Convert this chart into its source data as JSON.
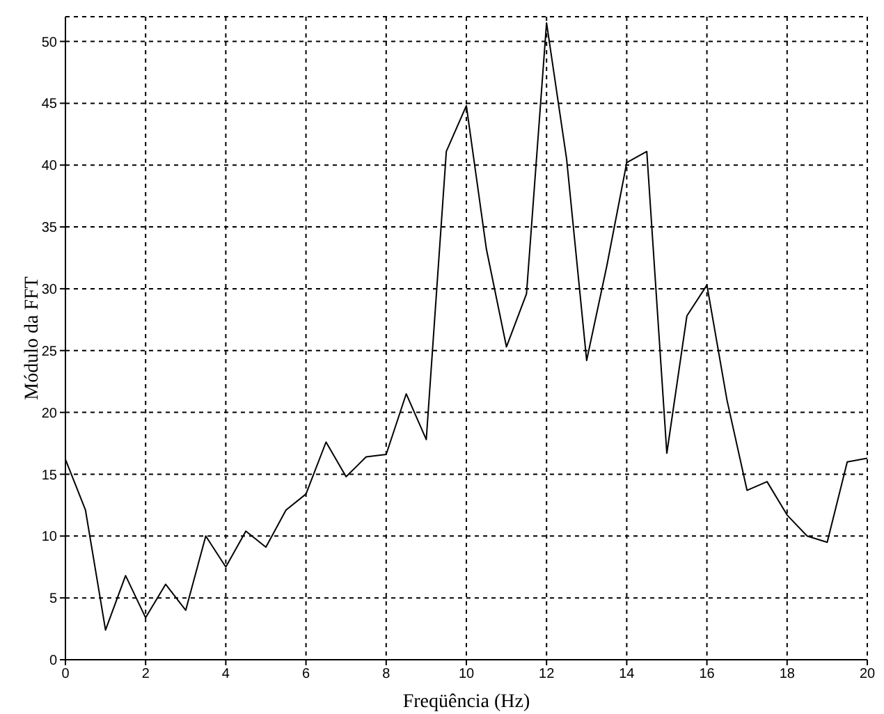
{
  "chart_data": {
    "type": "line",
    "xlabel": "Freqüência (Hz)",
    "ylabel": "Módulo da FFT",
    "x": [
      0,
      0.5,
      1,
      1.5,
      2,
      2.5,
      3,
      3.5,
      4,
      4.5,
      5,
      5.5,
      6,
      6.5,
      7,
      7.5,
      8,
      8.5,
      9,
      9.5,
      10,
      10.5,
      11,
      11.5,
      12,
      12.5,
      13,
      13.5,
      14,
      14.5,
      15,
      15.5,
      16,
      16.5,
      17,
      17.5,
      18,
      18.5,
      19,
      19.5,
      20
    ],
    "series": [
      {
        "color": "#000000",
        "values": [
          16.2,
          12.1,
          2.4,
          6.8,
          3.4,
          6.1,
          4.0,
          10.0,
          7.5,
          10.4,
          9.1,
          12.1,
          13.4,
          17.6,
          14.8,
          16.4,
          16.6,
          21.5,
          17.8,
          41.1,
          44.8,
          33.2,
          25.3,
          29.6,
          51.5,
          40.5,
          24.2,
          31.8,
          40.2,
          41.1,
          16.7,
          27.8,
          30.3,
          21,
          13.7,
          14.4,
          11.7,
          10.0,
          9.5,
          16.0,
          16.3
        ]
      }
    ],
    "xlim": [
      0,
      20
    ],
    "xticks": [
      0,
      2,
      4,
      6,
      8,
      10,
      12,
      14,
      16,
      18,
      20
    ],
    "ylim": [
      0,
      52
    ],
    "yticks": [
      0,
      5,
      10,
      15,
      20,
      25,
      30,
      35,
      40,
      45,
      50
    ],
    "grid": true,
    "marker": "none",
    "line_style": "solid"
  }
}
